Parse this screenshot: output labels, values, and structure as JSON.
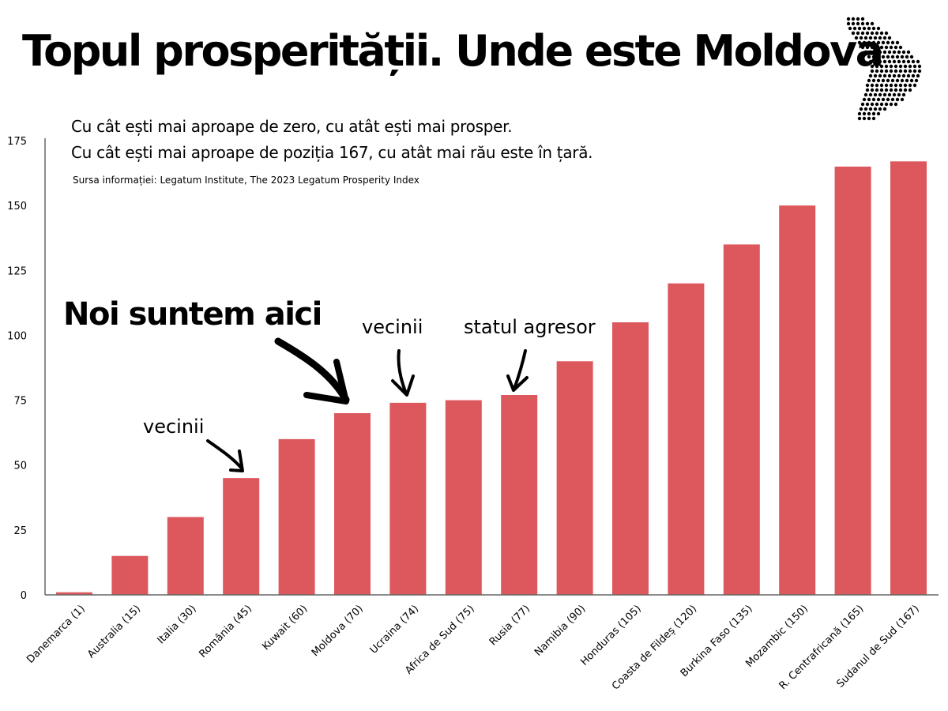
{
  "header": {
    "title": "Topul prosperității. Unde este Moldova",
    "subtitle_line1": "Cu cât ești mai aproape de zero, cu atât ești mai prosper.",
    "subtitle_line2": "Cu cât ești mai aproape de poziția 167, cu atât mai rău este în țară.",
    "source": "Sursa informației: Legatum Institute, The 2023 Legatum Prosperity Index"
  },
  "annotations": {
    "main": "Noi suntem aici",
    "neighbors_left": "vecinii",
    "neighbors_right": "vecinii",
    "aggressor": "statul agresor"
  },
  "icons": {
    "map": "moldova-dot-map-icon"
  },
  "colors": {
    "bar": "#DC585C",
    "axis": "#666666",
    "text": "#000000"
  },
  "chart_data": {
    "type": "bar",
    "categories": [
      "Danemarca (1)",
      "Australia (15)",
      "Italia (30)",
      "România (45)",
      "Kuwait (60)",
      "Moldova (70)",
      "Ucraina (74)",
      "Africa de Sud (75)",
      "Rusia (77)",
      "Namibia (90)",
      "Honduras (105)",
      "Coasta de Fildeș (120)",
      "Burkina Faso (135)",
      "Mozambic (150)",
      "R. Centrafricană (165)",
      "Sudanul de Sud (167)"
    ],
    "values": [
      1,
      15,
      30,
      45,
      60,
      70,
      74,
      75,
      77,
      90,
      105,
      120,
      135,
      150,
      165,
      167
    ],
    "yticks": [
      0,
      25,
      50,
      75,
      100,
      125,
      150,
      175
    ],
    "ylim": [
      0,
      175
    ],
    "grid": false,
    "legend": "none",
    "xlabel": "",
    "ylabel": ""
  }
}
